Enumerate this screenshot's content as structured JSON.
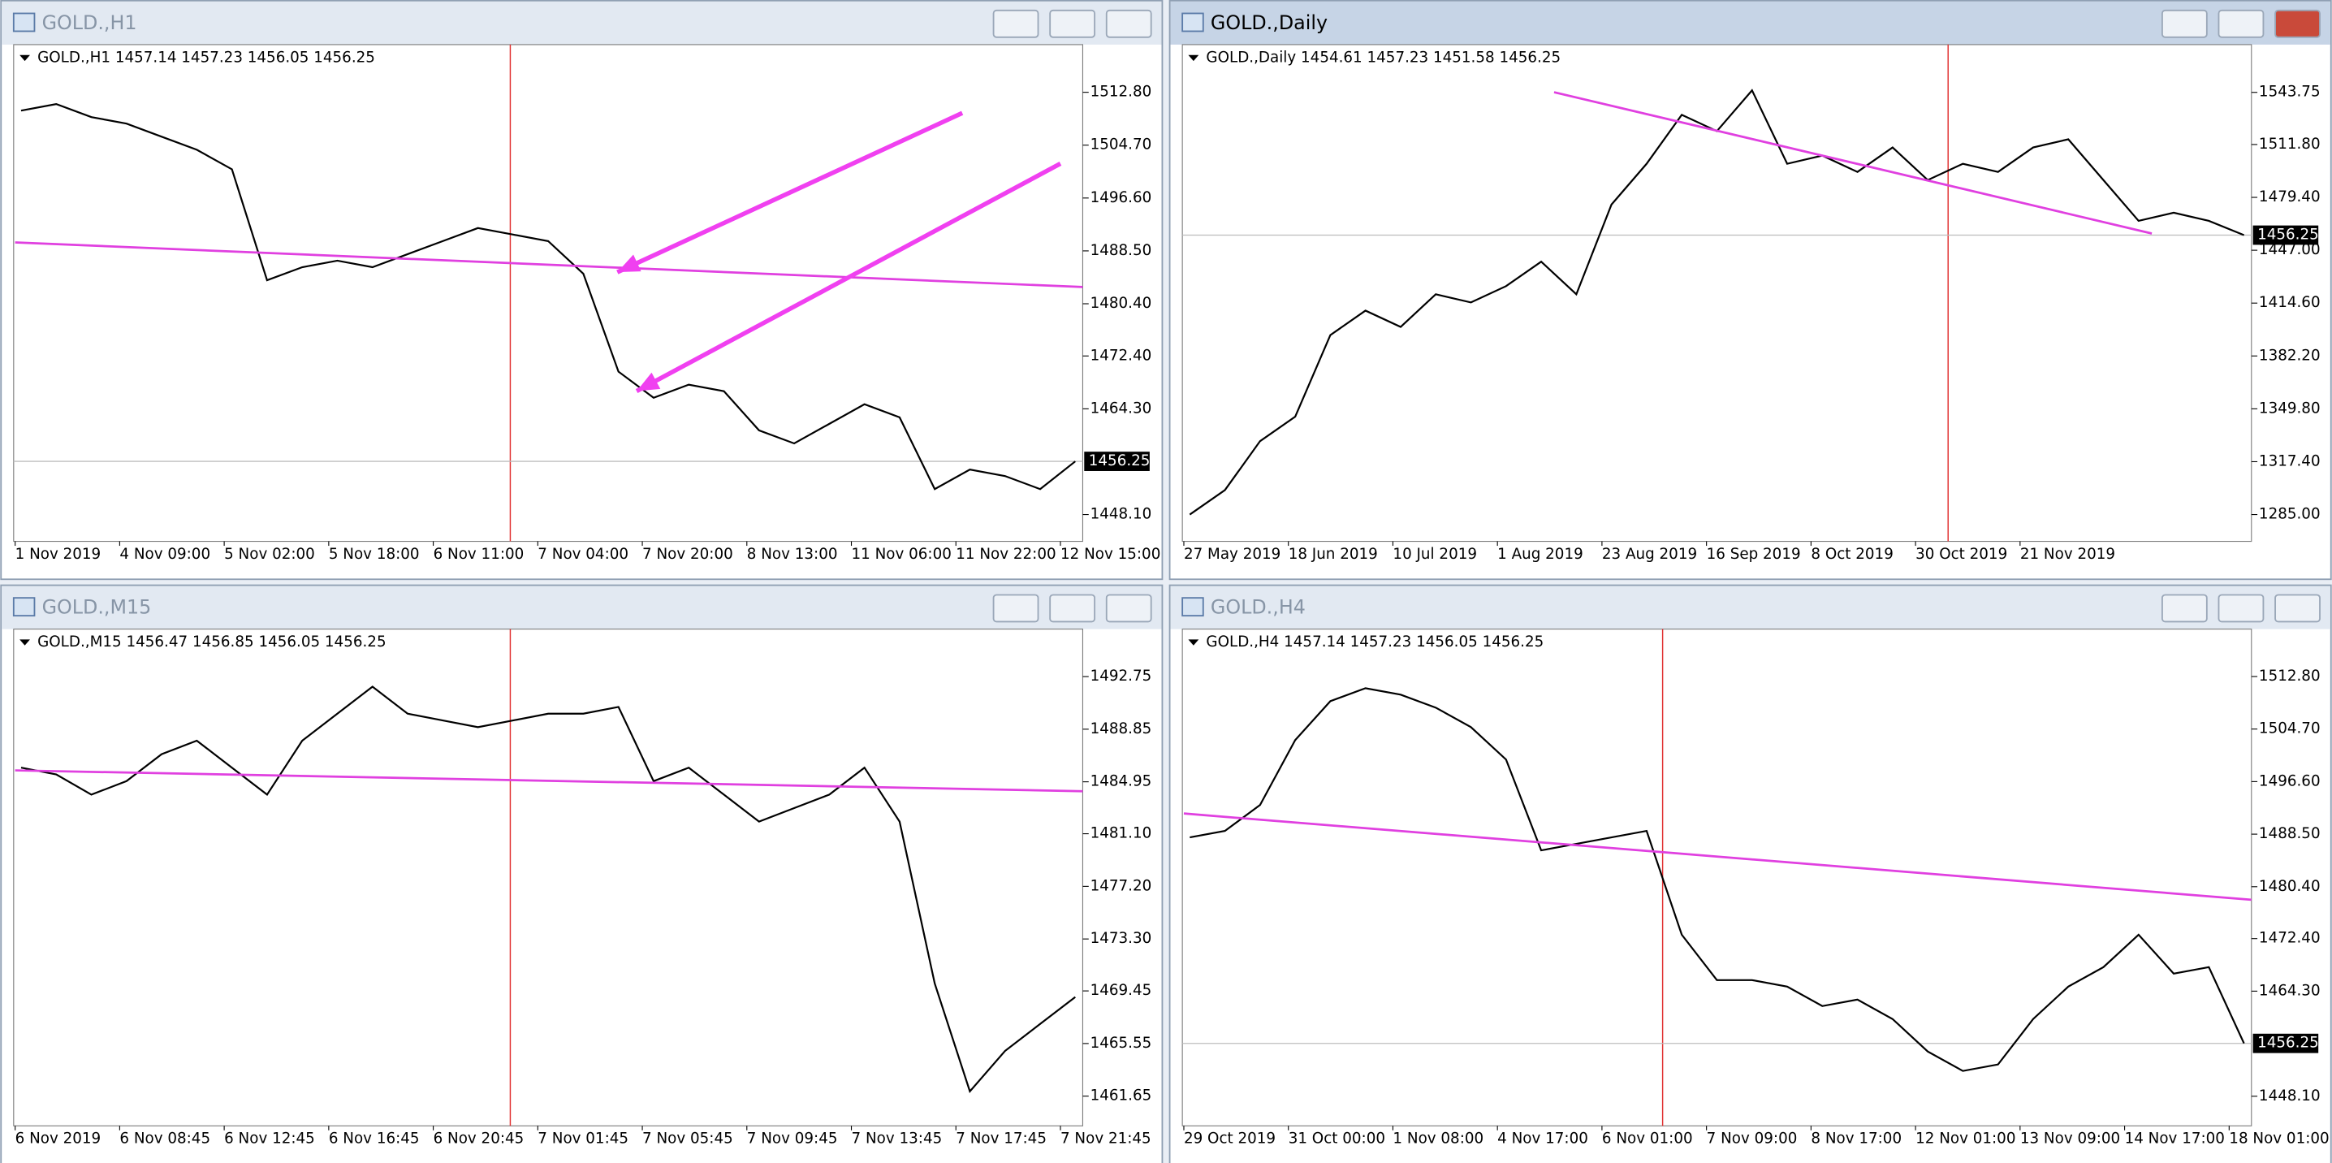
{
  "windows": [
    {
      "title": "GOLD.,H1",
      "active": false,
      "info": "GOLD.,H1  1457.14 1457.23 1456.05 1456.25",
      "ylim": [
        1444.45,
        1519.65
      ],
      "yticks": [
        {
          "value": 1512.8,
          "label": "1512.80"
        },
        {
          "value": 1504.7,
          "label": "1504.70"
        },
        {
          "value": 1496.6,
          "label": "1496.60"
        },
        {
          "value": 1488.5,
          "label": "1488.50"
        },
        {
          "value": 1480.4,
          "label": "1480.40"
        },
        {
          "value": 1472.4,
          "label": "1472.40"
        },
        {
          "value": 1464.3,
          "label": "1464.30"
        },
        {
          "value": 1448.1,
          "label": "1448.10"
        }
      ],
      "current": {
        "value": 1456.25,
        "label": "1456.25"
      },
      "xlabels": [
        "1 Nov 2019",
        "4 Nov 09:00",
        "5 Nov 02:00",
        "5 Nov 18:00",
        "6 Nov 11:00",
        "7 Nov 04:00",
        "7 Nov 20:00",
        "8 Nov 13:00",
        "11 Nov 06:00",
        "11 Nov 22:00",
        "12 Nov 15:00"
      ],
      "closes": [
        1510,
        1511,
        1509,
        1508,
        1506,
        1504,
        1501,
        1484,
        1486,
        1487,
        1486,
        1488,
        1490,
        1492,
        1491,
        1490,
        1485,
        1470,
        1466,
        1468,
        1467,
        1461,
        1459,
        1462,
        1465,
        1463,
        1452,
        1455,
        1454,
        1452,
        1456.25
      ]
    },
    {
      "title": "GOLD.,Daily",
      "active": true,
      "info": "GOLD.,Daily  1454.61 1457.23 1451.58 1456.25",
      "ylim": [
        1270.4,
        1571.2
      ],
      "yticks": [
        {
          "value": 1543.75,
          "label": "1543.75"
        },
        {
          "value": 1511.8,
          "label": "1511.80"
        },
        {
          "value": 1479.4,
          "label": "1479.40"
        },
        {
          "value": 1447,
          "label": "1447.00"
        },
        {
          "value": 1414.6,
          "label": "1414.60"
        },
        {
          "value": 1382.2,
          "label": "1382.20"
        },
        {
          "value": 1349.8,
          "label": "1349.80"
        },
        {
          "value": 1317.4,
          "label": "1317.40"
        },
        {
          "value": 1285,
          "label": "1285.00"
        }
      ],
      "current": {
        "value": 1456.25,
        "label": "1456.25"
      },
      "xlabels": [
        "27 May 2019",
        "18 Jun 2019",
        "10 Jul 2019",
        "1 Aug 2019",
        "23 Aug 2019",
        "16 Sep 2019",
        "8 Oct 2019",
        "30 Oct 2019",
        "21 Nov 2019"
      ],
      "closes": [
        1285,
        1300,
        1330,
        1345,
        1395,
        1410,
        1400,
        1420,
        1415,
        1425,
        1440,
        1420,
        1475,
        1500,
        1530,
        1520,
        1545,
        1500,
        1505,
        1495,
        1510,
        1490,
        1500,
        1495,
        1510,
        1515,
        1490,
        1465,
        1470,
        1465,
        1456.25
      ]
    },
    {
      "title": "GOLD.,M15",
      "active": false,
      "info": "GOLD.,M15  1456.47 1456.85 1456.05 1456.25",
      "ylim": [
        1459.67,
        1496.05
      ],
      "yticks": [
        {
          "value": 1492.75,
          "label": "1492.75"
        },
        {
          "value": 1488.85,
          "label": "1488.85"
        },
        {
          "value": 1484.95,
          "label": "1484.95"
        },
        {
          "value": 1481.1,
          "label": "1481.10"
        },
        {
          "value": 1477.2,
          "label": "1477.20"
        },
        {
          "value": 1473.3,
          "label": "1473.30"
        },
        {
          "value": 1469.45,
          "label": "1469.45"
        },
        {
          "value": 1465.55,
          "label": "1465.55"
        },
        {
          "value": 1461.65,
          "label": "1461.65"
        }
      ],
      "xlabels": [
        "6 Nov 2019",
        "6 Nov 08:45",
        "6 Nov 12:45",
        "6 Nov 16:45",
        "6 Nov 20:45",
        "7 Nov 01:45",
        "7 Nov 05:45",
        "7 Nov 09:45",
        "7 Nov 13:45",
        "7 Nov 17:45",
        "7 Nov 21:45"
      ],
      "closes": [
        1486,
        1485.5,
        1484,
        1485,
        1487,
        1488,
        1486,
        1484,
        1488,
        1490,
        1492,
        1490,
        1489.5,
        1489,
        1489.5,
        1490,
        1490,
        1490.5,
        1485,
        1486,
        1484,
        1482,
        1483,
        1484,
        1486,
        1482,
        1470,
        1462,
        1465,
        1467,
        1469
      ]
    },
    {
      "title": "GOLD.,H4",
      "active": false,
      "info": "GOLD.,H4  1457.14 1457.23 1456.05 1456.25",
      "ylim": [
        1444,
        1519.65
      ],
      "yticks": [
        {
          "value": 1512.8,
          "label": "1512.80"
        },
        {
          "value": 1504.7,
          "label": "1504.70"
        },
        {
          "value": 1496.6,
          "label": "1496.60"
        },
        {
          "value": 1488.5,
          "label": "1488.50"
        },
        {
          "value": 1480.4,
          "label": "1480.40"
        },
        {
          "value": 1472.4,
          "label": "1472.40"
        },
        {
          "value": 1464.3,
          "label": "1464.30"
        },
        {
          "value": 1448.1,
          "label": "1448.10"
        }
      ],
      "current": {
        "value": 1456.25,
        "label": "1456.25"
      },
      "xlabels": [
        "29 Oct 2019",
        "31 Oct 00:00",
        "1 Nov 08:00",
        "4 Nov 17:00",
        "6 Nov 01:00",
        "7 Nov 09:00",
        "8 Nov 17:00",
        "12 Nov 01:00",
        "13 Nov 09:00",
        "14 Nov 17:00",
        "18 Nov 01:00"
      ],
      "closes": [
        1488,
        1489,
        1493,
        1503,
        1509,
        1511,
        1510,
        1508,
        1505,
        1500,
        1486,
        1487,
        1488,
        1489,
        1473,
        1466,
        1466,
        1465,
        1462,
        1463,
        1460,
        1455,
        1452,
        1453,
        1460,
        1465,
        1468,
        1473,
        1467,
        1468,
        1456.25
      ]
    }
  ]
}
